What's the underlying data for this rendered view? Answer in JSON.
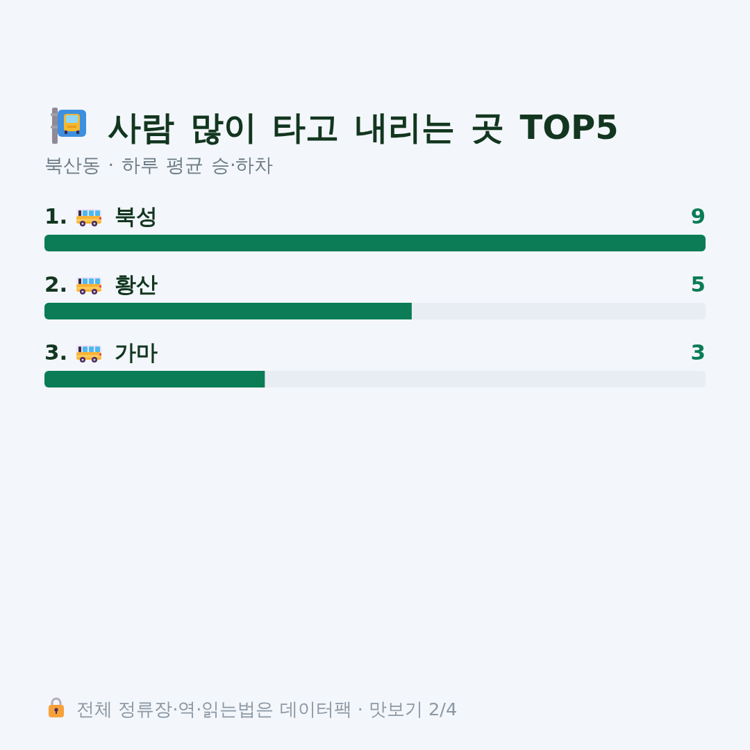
{
  "chart_data": {
    "type": "bar",
    "orientation": "horizontal",
    "title": "사람 많이 타고 내리는 곳 TOP5",
    "subtitle": "북산동 · 하루 평균 승·하차",
    "categories": [
      "1. 북성",
      "2. 황산",
      "3. 가마"
    ],
    "values": [
      9,
      5,
      3
    ],
    "color": "#0b7c55",
    "xlim": [
      0,
      9
    ],
    "tick_labels": "y",
    "data_labels": true,
    "annotations": [
      "전체 정류장·역·읽는법은 데이터팩 · 맛보기 2/4"
    ]
  }
}
